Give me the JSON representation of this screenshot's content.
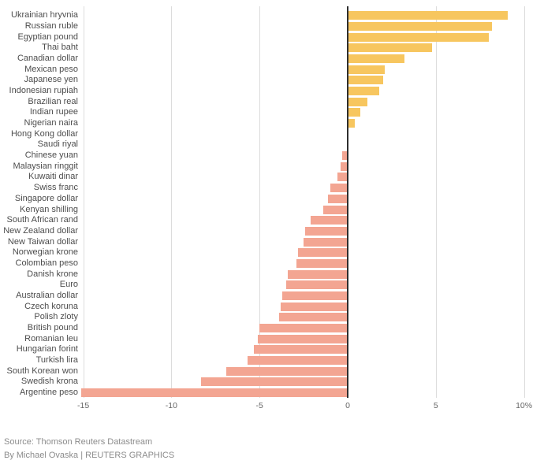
{
  "chart_data": {
    "type": "bar",
    "orientation": "horizontal",
    "unit": "%",
    "categories": [
      "Ukrainian hryvnia",
      "Russian ruble",
      "Egyptian pound",
      "Thai baht",
      "Canadian dollar",
      "Mexican peso",
      "Japanese yen",
      "Indonesian rupiah",
      "Brazilian real",
      "Indian rupee",
      "Nigerian naira",
      "Hong Kong dollar",
      "Saudi riyal",
      "Chinese yuan",
      "Malaysian ringgit",
      "Kuwaiti dinar",
      "Swiss franc",
      "Singapore dollar",
      "Kenyan shilling",
      "South African rand",
      "New Zealand dollar",
      "New Taiwan dollar",
      "Norwegian krone",
      "Colombian peso",
      "Danish krone",
      "Euro",
      "Australian dollar",
      "Czech koruna",
      "Polish zloty",
      "British pound",
      "Romanian leu",
      "Hungarian forint",
      "Turkish lira",
      "South Korean won",
      "Swedish krona",
      "Argentine peso"
    ],
    "values": [
      9.1,
      8.2,
      8.0,
      4.8,
      3.2,
      2.1,
      2.0,
      1.8,
      1.1,
      0.7,
      0.4,
      0.0,
      0.0,
      -0.3,
      -0.4,
      -0.6,
      -1.0,
      -1.1,
      -1.4,
      -2.1,
      -2.4,
      -2.5,
      -2.8,
      -2.9,
      -3.4,
      -3.5,
      -3.7,
      -3.8,
      -3.9,
      -5.0,
      -5.1,
      -5.3,
      -5.7,
      -6.9,
      -8.3,
      -15.1
    ],
    "ticks": [
      {
        "value": -15,
        "label": "-15"
      },
      {
        "value": -10,
        "label": "-10"
      },
      {
        "value": -5,
        "label": "-5"
      },
      {
        "value": 0,
        "label": "0"
      },
      {
        "value": 5,
        "label": "5"
      },
      {
        "value": 10,
        "label": "10%"
      }
    ],
    "xlim": [
      -15.2,
      10.2
    ],
    "grid": true,
    "legend": false,
    "title": "",
    "positive_color": "#f7c65f",
    "negative_color": "#f3a592",
    "grid_color": "#dcdcdc",
    "zero_line_color": "#2e2e2e"
  },
  "source": {
    "line1": "Source: Thomson Reuters Datastream",
    "line2": "By Michael Ovaska | REUTERS GRAPHICS"
  }
}
